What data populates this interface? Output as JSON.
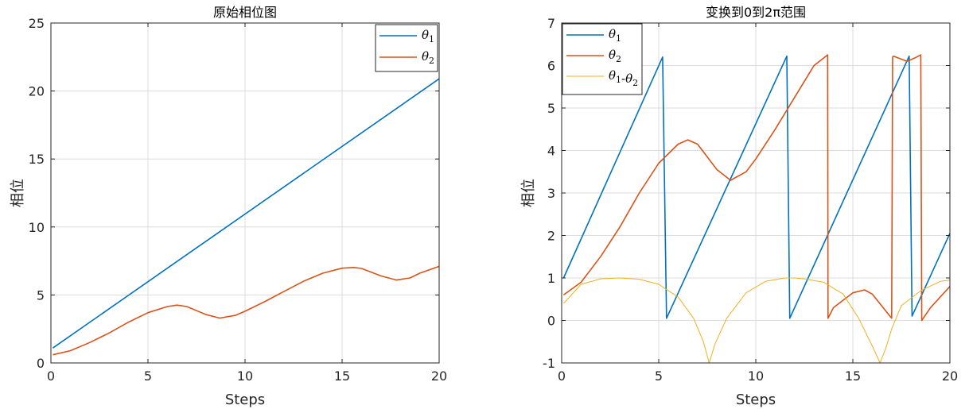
{
  "chart_data": [
    {
      "type": "line",
      "title": "原始相位图",
      "xlabel": "Steps",
      "ylabel": "相位",
      "xlim": [
        0,
        20
      ],
      "ylim": [
        0,
        25
      ],
      "xticks": [
        0,
        5,
        10,
        15,
        20
      ],
      "yticks": [
        0,
        5,
        10,
        15,
        20,
        25
      ],
      "grid": true,
      "legend_position": "top-right",
      "series": [
        {
          "name": "θ1",
          "color": "#0072BD",
          "x": [
            0.1,
            20
          ],
          "y": [
            1.1,
            20.9
          ]
        },
        {
          "name": "θ2",
          "color": "#D95319",
          "x": [
            0.1,
            1,
            2,
            3,
            4,
            5,
            6,
            6.5,
            7,
            8,
            8.7,
            9.5,
            10,
            11,
            12,
            13,
            14,
            15,
            15.6,
            16,
            17,
            17.8,
            18.5,
            19,
            20
          ],
          "y": [
            0.6,
            0.9,
            1.5,
            2.2,
            3.0,
            3.7,
            4.15,
            4.25,
            4.15,
            3.55,
            3.3,
            3.5,
            3.8,
            4.5,
            5.25,
            6.0,
            6.6,
            6.97,
            7.02,
            6.95,
            6.4,
            6.1,
            6.25,
            6.6,
            7.1
          ]
        }
      ]
    },
    {
      "type": "line",
      "title": "变换到0到2π范围",
      "xlabel": "Steps",
      "ylabel": "相位",
      "xlim": [
        0,
        20
      ],
      "ylim": [
        -1,
        7
      ],
      "xticks": [
        0,
        5,
        10,
        15,
        20
      ],
      "yticks": [
        -1,
        0,
        1,
        2,
        3,
        4,
        5,
        6,
        7
      ],
      "grid": true,
      "legend_position": "top-left",
      "series": [
        {
          "name": "θ1",
          "color": "#0072BD",
          "x": [
            0.1,
            5.2,
            5.4,
            11.6,
            11.75,
            17.9,
            18.05,
            20
          ],
          "y": [
            1.0,
            6.2,
            0.05,
            6.22,
            0.05,
            6.22,
            0.1,
            2.05
          ]
        },
        {
          "name": "θ2",
          "color": "#D95319",
          "x": [
            0.1,
            1,
            2,
            3,
            4,
            5,
            6,
            6.5,
            7,
            8,
            8.7,
            9.5,
            10,
            11,
            12,
            13,
            13.7,
            13.72,
            14,
            15,
            15.6,
            16,
            17,
            17.05,
            17.1,
            17.5,
            17.8,
            18.2,
            18.5,
            18.55,
            19,
            20
          ],
          "y": [
            0.6,
            0.9,
            1.5,
            2.2,
            3.0,
            3.7,
            4.15,
            4.25,
            4.15,
            3.55,
            3.3,
            3.5,
            3.8,
            4.5,
            5.25,
            6.0,
            6.25,
            0.05,
            0.3,
            0.65,
            0.72,
            0.62,
            0.05,
            6.2,
            6.22,
            6.15,
            6.1,
            6.18,
            6.25,
            0.0,
            0.3,
            0.8
          ]
        },
        {
          "name": "θ1-θ2",
          "color": "#EDB120",
          "x": [
            0.1,
            1,
            2,
            3,
            4,
            5,
            6,
            6.8,
            7.3,
            7.6,
            7.9,
            8.5,
            9.5,
            10.5,
            11.5,
            12,
            12.5,
            13.5,
            14.5,
            15.3,
            16,
            16.4,
            16.7,
            17,
            17.5,
            18.5,
            19.5,
            20
          ],
          "y": [
            0.4,
            0.85,
            0.98,
            1.0,
            0.97,
            0.85,
            0.55,
            0.05,
            -0.5,
            -1.0,
            -0.55,
            0.05,
            0.65,
            0.92,
            1.0,
            1.0,
            0.98,
            0.9,
            0.62,
            0.05,
            -0.6,
            -1.0,
            -0.65,
            -0.2,
            0.35,
            0.7,
            0.92,
            0.95
          ]
        }
      ]
    }
  ]
}
